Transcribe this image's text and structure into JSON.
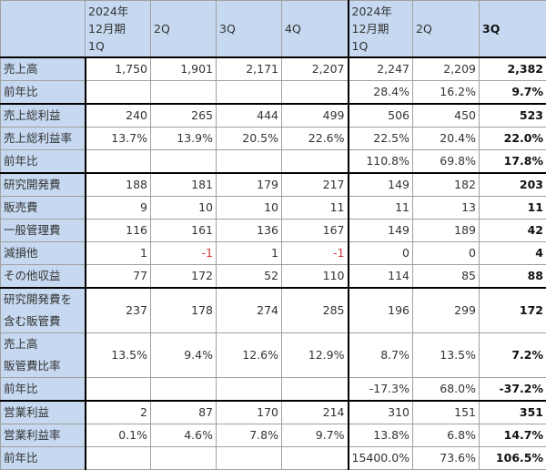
{
  "headers": [
    {
      "label": "",
      "lines": []
    },
    {
      "lines": [
        "2024年",
        "12月期",
        "1Q"
      ]
    },
    {
      "lines": [
        "2Q"
      ]
    },
    {
      "lines": [
        "3Q"
      ]
    },
    {
      "lines": [
        "4Q"
      ]
    },
    {
      "lines": [
        "2024年",
        "12月期",
        "1Q"
      ]
    },
    {
      "lines": [
        "2Q"
      ]
    },
    {
      "lines": [
        "3Q"
      ],
      "bold": true
    }
  ],
  "sections": [
    {
      "rows": [
        {
          "label": "売上高",
          "values": [
            "1,750",
            "1,901",
            "2,171",
            "2,207",
            "2,247",
            "2,209",
            "2,382"
          ]
        },
        {
          "label": "前年比",
          "values": [
            "",
            "",
            "",
            "",
            "28.4%",
            "16.2%",
            "9.7%"
          ]
        }
      ]
    },
    {
      "rows": [
        {
          "label": "売上総利益",
          "values": [
            "240",
            "265",
            "444",
            "499",
            "506",
            "450",
            "523"
          ]
        },
        {
          "label": "売上総利益率",
          "values": [
            "13.7%",
            "13.9%",
            "20.5%",
            "22.6%",
            "22.5%",
            "20.4%",
            "22.0%"
          ]
        },
        {
          "label": "前年比",
          "values": [
            "",
            "",
            "",
            "",
            "110.8%",
            "69.8%",
            "17.8%"
          ]
        }
      ]
    },
    {
      "rows": [
        {
          "label": "研究開発費",
          "values": [
            "188",
            "181",
            "179",
            "217",
            "149",
            "182",
            "203"
          ]
        },
        {
          "label": "販売費",
          "values": [
            "9",
            "10",
            "10",
            "11",
            "11",
            "13",
            "11"
          ]
        },
        {
          "label": "一般管理費",
          "values": [
            "116",
            "161",
            "136",
            "167",
            "149",
            "189",
            "42"
          ]
        },
        {
          "label": "減損他",
          "values": [
            "1",
            "-1",
            "1",
            "-1",
            "0",
            "0",
            "4"
          ]
        },
        {
          "label": "その他収益",
          "values": [
            "77",
            "172",
            "52",
            "110",
            "114",
            "85",
            "88"
          ]
        }
      ]
    },
    {
      "rows": [
        {
          "label1": "研究開発費を",
          "label2": "含む販管費",
          "values": [
            "237",
            "178",
            "274",
            "285",
            "196",
            "299",
            "172"
          ]
        },
        {
          "label1": "売上高",
          "label2": "販管費比率",
          "values": [
            "13.5%",
            "9.4%",
            "12.6%",
            "12.9%",
            "8.7%",
            "13.5%",
            "7.2%"
          ]
        },
        {
          "label": "前年比",
          "values": [
            "",
            "",
            "",
            "",
            "-17.3%",
            "68.0%",
            "-37.2%"
          ]
        }
      ]
    },
    {
      "rows": [
        {
          "label": "営業利益",
          "values": [
            "2",
            "87",
            "170",
            "214",
            "310",
            "151",
            "351"
          ]
        },
        {
          "label": "営業利益率",
          "values": [
            "0.1%",
            "4.6%",
            "7.8%",
            "9.7%",
            "13.8%",
            "6.8%",
            "14.7%"
          ]
        },
        {
          "label": "前年比",
          "values": [
            "",
            "",
            "",
            "",
            "15400.0%",
            "73.6%",
            "106.5%"
          ]
        }
      ]
    }
  ],
  "colors": {
    "header_bg": "#c6d9f0",
    "negative": "#e0303a",
    "grid": "#a0a0a0"
  }
}
